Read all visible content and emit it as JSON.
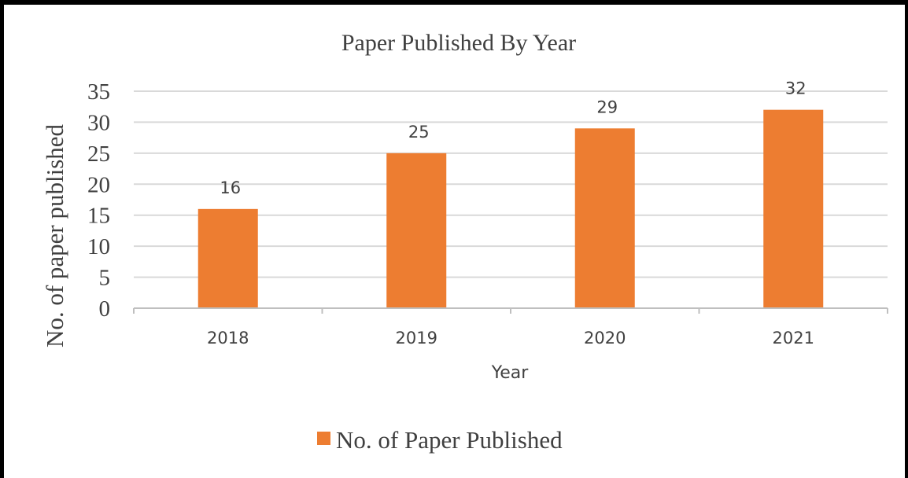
{
  "chart_data": {
    "type": "bar",
    "title": "Paper Published By Year",
    "xlabel": "Year",
    "ylabel": "No. of paper published",
    "categories": [
      "2018",
      "2019",
      "2020",
      "2021"
    ],
    "series": [
      {
        "name": "No. of Paper Published",
        "values": [
          16,
          25,
          29,
          32
        ],
        "color": "#ED7D31"
      }
    ],
    "data_labels": [
      "16",
      "25",
      "29",
      "32"
    ],
    "ylim": [
      0,
      35
    ],
    "yticks": [
      0,
      5,
      10,
      15,
      20,
      25,
      30,
      35
    ],
    "grid": true,
    "legend": "bottom"
  },
  "colors": {
    "bar": "#ED7D31",
    "grid": "#D9D9D9",
    "axis": "#BFBFBF",
    "text": "#404040",
    "frame": "#000000"
  }
}
